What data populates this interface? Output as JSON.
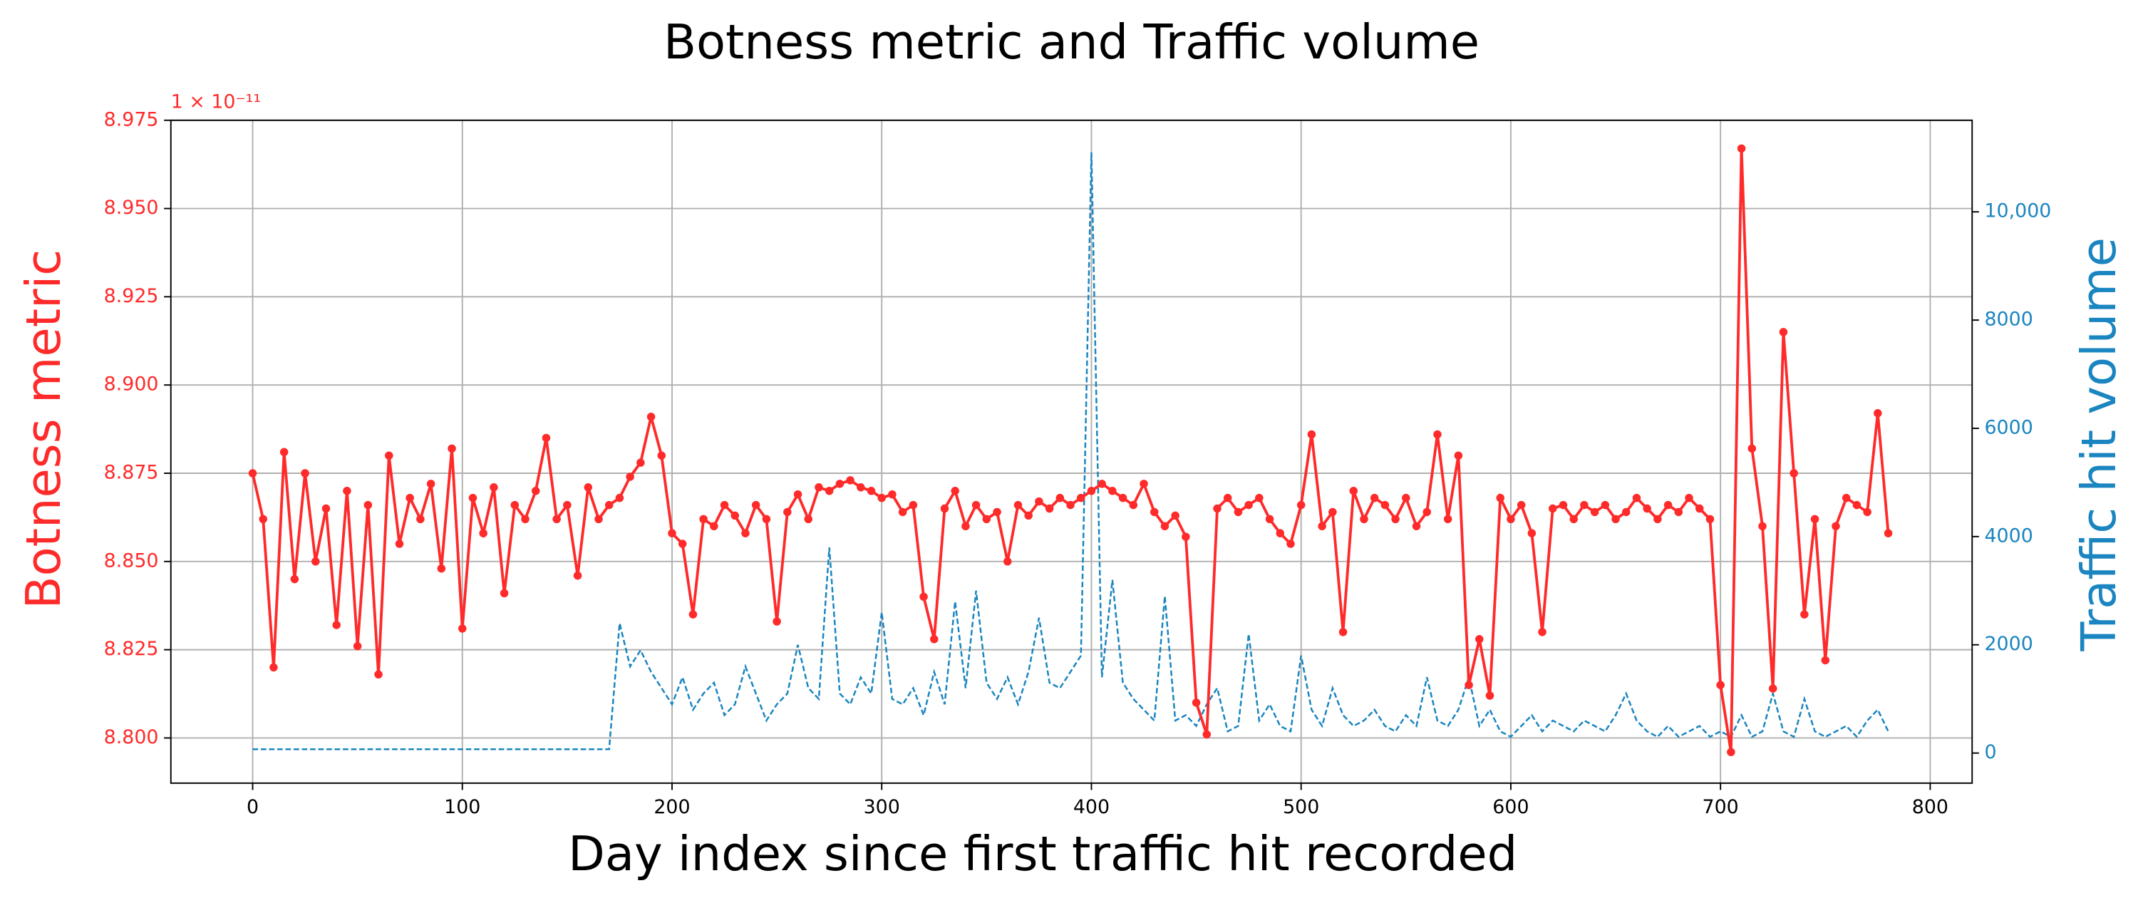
{
  "chart_data": {
    "type": "line",
    "title": "Botness metric and Traffic volume",
    "xlabel": "Day index since first traffic hit recorded",
    "ylabel": "Botness metric",
    "y2label": "Traffic hit volume",
    "y_offset_label": "1 × 10⁻¹¹",
    "xlim": [
      -39,
      820
    ],
    "xticks": [
      0,
      100,
      200,
      300,
      400,
      500,
      600,
      700,
      800
    ],
    "ylim": [
      8.7872,
      8.975
    ],
    "yticks": [
      {
        "value": 8.8,
        "label": "8.800"
      },
      8.825,
      {
        "value": 8.85,
        "label": "8.850"
      },
      8.875,
      {
        "value": 8.9,
        "label": "8.900"
      },
      8.925,
      {
        "value": 8.95,
        "label": "8.950"
      },
      8.975
    ],
    "y2lim": [
      -556,
      11692
    ],
    "y2ticks": [
      0,
      2000,
      4000,
      6000,
      8000,
      {
        "value": 10000,
        "label": "10,000"
      }
    ],
    "grid": true,
    "x": [
      0,
      5,
      10,
      15,
      20,
      25,
      30,
      35,
      40,
      45,
      50,
      55,
      60,
      65,
      70,
      75,
      80,
      85,
      90,
      95,
      100,
      105,
      110,
      115,
      120,
      125,
      130,
      135,
      140,
      145,
      150,
      155,
      160,
      165,
      170,
      175,
      180,
      185,
      190,
      195,
      200,
      205,
      210,
      215,
      220,
      225,
      230,
      235,
      240,
      245,
      250,
      255,
      260,
      265,
      270,
      275,
      280,
      285,
      290,
      295,
      300,
      305,
      310,
      315,
      320,
      325,
      330,
      335,
      340,
      345,
      350,
      355,
      360,
      365,
      370,
      375,
      380,
      385,
      390,
      395,
      400,
      405,
      410,
      415,
      420,
      425,
      430,
      435,
      440,
      445,
      450,
      455,
      460,
      465,
      470,
      475,
      480,
      485,
      490,
      495,
      500,
      505,
      510,
      515,
      520,
      525,
      530,
      535,
      540,
      545,
      550,
      555,
      560,
      565,
      570,
      575,
      580,
      585,
      590,
      595,
      600,
      605,
      610,
      615,
      620,
      625,
      630,
      635,
      640,
      645,
      650,
      655,
      660,
      665,
      670,
      675,
      680,
      685,
      690,
      695,
      700,
      705,
      710,
      715,
      720,
      725,
      730,
      735,
      740,
      745,
      750,
      755,
      760,
      765,
      770,
      775,
      780
    ],
    "series": [
      {
        "name": "Botness metric",
        "color": "#ff2a2a",
        "axis": "y",
        "markers": true,
        "dashed": false,
        "values": [
          8.875,
          8.862,
          8.82,
          8.881,
          8.845,
          8.875,
          8.85,
          8.865,
          8.832,
          8.87,
          8.826,
          8.866,
          8.818,
          8.88,
          8.855,
          8.868,
          8.862,
          8.872,
          8.848,
          8.882,
          8.831,
          8.868,
          8.858,
          8.871,
          8.841,
          8.866,
          8.862,
          8.87,
          8.885,
          8.862,
          8.866,
          8.846,
          8.871,
          8.862,
          8.866,
          8.868,
          8.874,
          8.878,
          8.891,
          8.88,
          8.858,
          8.855,
          8.835,
          8.862,
          8.86,
          8.866,
          8.863,
          8.858,
          8.866,
          8.862,
          8.833,
          8.864,
          8.869,
          8.862,
          8.871,
          8.87,
          8.872,
          8.873,
          8.871,
          8.87,
          8.868,
          8.869,
          8.864,
          8.866,
          8.84,
          8.828,
          8.865,
          8.87,
          8.86,
          8.866,
          8.862,
          8.864,
          8.85,
          8.866,
          8.863,
          8.867,
          8.865,
          8.868,
          8.866,
          8.868,
          8.87,
          8.872,
          8.87,
          8.868,
          8.866,
          8.872,
          8.864,
          8.86,
          8.863,
          8.857,
          8.81,
          8.801,
          8.865,
          8.868,
          8.864,
          8.866,
          8.868,
          8.862,
          8.858,
          8.855,
          8.866,
          8.886,
          8.86,
          8.864,
          8.83,
          8.87,
          8.862,
          8.868,
          8.866,
          8.862,
          8.868,
          8.86,
          8.864,
          8.886,
          8.862,
          8.88,
          8.815,
          8.828,
          8.812,
          8.868,
          8.862,
          8.866,
          8.858,
          8.83,
          8.865,
          8.866,
          8.862,
          8.866,
          8.864,
          8.866,
          8.862,
          8.864,
          8.868,
          8.865,
          8.862,
          8.866,
          8.864,
          8.868,
          8.865,
          8.862,
          8.815,
          8.796,
          8.967,
          8.882,
          8.86,
          8.814,
          8.915,
          8.875,
          8.835,
          8.862,
          8.822,
          8.86,
          8.868,
          8.866,
          8.864,
          8.892,
          8.858
        ]
      },
      {
        "name": "Traffic hit volume",
        "color": "#1a85c0",
        "axis": "y2",
        "markers": false,
        "dashed": true,
        "values": [
          70,
          70,
          70,
          70,
          70,
          70,
          70,
          70,
          70,
          70,
          70,
          70,
          70,
          70,
          70,
          70,
          70,
          70,
          70,
          70,
          70,
          70,
          70,
          70,
          70,
          70,
          70,
          70,
          70,
          70,
          70,
          70,
          70,
          70,
          70,
          2400,
          1600,
          1900,
          1500,
          1200,
          900,
          1400,
          800,
          1100,
          1300,
          700,
          900,
          1600,
          1100,
          600,
          900,
          1100,
          2000,
          1200,
          1000,
          3800,
          1100,
          900,
          1400,
          1100,
          2600,
          1000,
          900,
          1200,
          700,
          1500,
          900,
          2800,
          1200,
          3000,
          1300,
          1000,
          1400,
          900,
          1500,
          2500,
          1300,
          1200,
          1500,
          1800,
          11100,
          1400,
          3200,
          1300,
          1000,
          800,
          600,
          2900,
          600,
          700,
          500,
          900,
          1200,
          400,
          500,
          2200,
          600,
          900,
          500,
          400,
          1800,
          800,
          500,
          1200,
          700,
          500,
          600,
          800,
          500,
          400,
          700,
          500,
          1400,
          600,
          500,
          800,
          1400,
          500,
          800,
          400,
          300,
          500,
          700,
          400,
          600,
          500,
          400,
          600,
          500,
          400,
          700,
          1100,
          600,
          400,
          300,
          500,
          300,
          400,
          500,
          300,
          400,
          300,
          700,
          300,
          400,
          1100,
          400,
          300,
          1000,
          400,
          300,
          400,
          500,
          300,
          600,
          800,
          400
        ]
      }
    ]
  }
}
